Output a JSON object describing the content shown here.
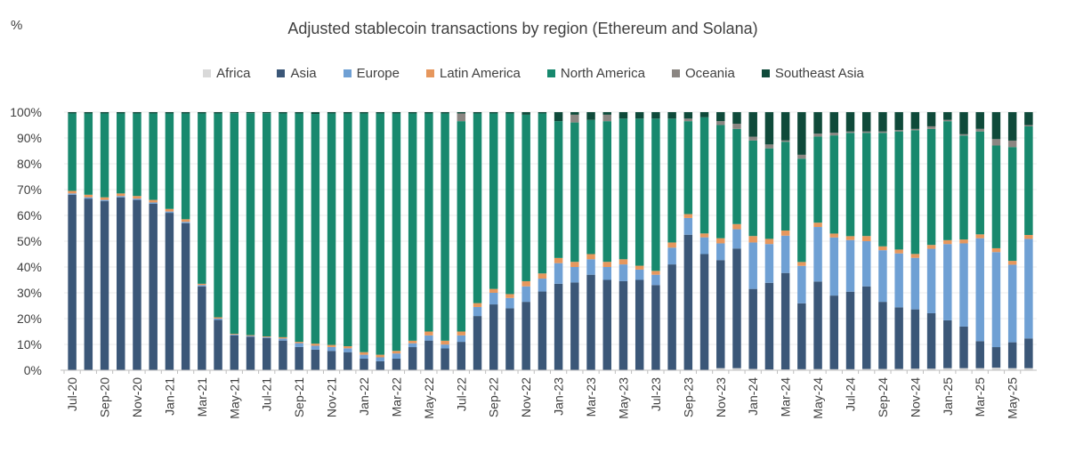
{
  "chart_data": {
    "type": "bar",
    "stacked": true,
    "title": "Adjusted stablecoin transactions by region (Ethereum and Solana)",
    "unit_label": "%",
    "ylim": [
      0,
      100
    ],
    "yticks": [
      "0%",
      "10%",
      "20%",
      "30%",
      "40%",
      "50%",
      "60%",
      "70%",
      "80%",
      "90%",
      "100%"
    ],
    "legend_position": "top",
    "categories": [
      "Jul-20",
      "Aug-20",
      "Sep-20",
      "Oct-20",
      "Nov-20",
      "Dec-20",
      "Jan-21",
      "Feb-21",
      "Mar-21",
      "Apr-21",
      "May-21",
      "Jun-21",
      "Jul-21",
      "Aug-21",
      "Sep-21",
      "Oct-21",
      "Nov-21",
      "Dec-21",
      "Jan-22",
      "Feb-22",
      "Mar-22",
      "Apr-22",
      "May-22",
      "Jun-22",
      "Jul-22",
      "Aug-22",
      "Sep-22",
      "Oct-22",
      "Nov-22",
      "Dec-22",
      "Jan-23",
      "Feb-23",
      "Mar-23",
      "Apr-23",
      "May-23",
      "Jun-23",
      "Jul-23",
      "Aug-23",
      "Sep-23",
      "Oct-23",
      "Nov-23",
      "Dec-23",
      "Jan-24",
      "Feb-24",
      "Mar-24",
      "Apr-24",
      "May-24",
      "Jun-24",
      "Jul-24",
      "Aug-24",
      "Sep-24",
      "Oct-24",
      "Nov-24",
      "Dec-24",
      "Jan-25",
      "Feb-25",
      "Mar-25",
      "Apr-25",
      "May-25",
      "Jun-25"
    ],
    "x_tick_labels": [
      "Jul-20",
      "Sep-20",
      "Nov-20",
      "Jan-21",
      "Mar-21",
      "May-21",
      "Jul-21",
      "Sep-21",
      "Nov-21",
      "Jan-22",
      "Mar-22",
      "May-22",
      "Jul-22",
      "Sep-22",
      "Nov-22",
      "Jan-23",
      "Mar-23",
      "May-23",
      "Jul-23",
      "Sep-23",
      "Nov-23",
      "Jan-24",
      "Mar-24",
      "May-24",
      "Jul-24",
      "Sep-24",
      "Nov-24",
      "Jan-25",
      "Mar-25",
      "May-25"
    ],
    "series": [
      {
        "name": "Africa",
        "color": "#d9d9d9",
        "values": [
          0,
          0,
          0,
          0,
          0,
          0,
          0,
          0,
          0,
          0,
          0,
          0,
          0,
          0,
          0,
          0,
          0,
          0,
          0,
          0,
          0,
          0,
          0,
          0,
          0,
          0,
          0,
          0,
          0,
          0,
          0,
          0,
          0,
          0,
          0,
          0,
          0,
          0,
          0,
          0,
          0.8,
          0.8,
          0.5,
          0.3,
          0.3,
          0.4,
          0.4,
          0.4,
          0.4,
          0.5,
          0.5,
          0.5,
          0.6,
          0.6,
          0.8,
          0.8,
          0.8,
          1.0,
          0.8,
          0.8
        ]
      },
      {
        "name": "Asia",
        "color": "#3b5778",
        "values": [
          68,
          66.5,
          65.5,
          67,
          66,
          64.5,
          61,
          57,
          32.5,
          19.5,
          13.5,
          13,
          12.5,
          11.5,
          9,
          8,
          7.5,
          7,
          4.5,
          3.5,
          4.5,
          9,
          11.5,
          8.5,
          11,
          21,
          25.5,
          24,
          26.5,
          30.5,
          33.5,
          34,
          37,
          35,
          34.5,
          35,
          33,
          41,
          52.5,
          45,
          42,
          46.5,
          31,
          33.5,
          37.5,
          25.5,
          30.5,
          28.5,
          30,
          32,
          26,
          24,
          23,
          21.5,
          18.5,
          16,
          10.5,
          8,
          10,
          11.5
        ]
      },
      {
        "name": "Europe",
        "color": "#6fa0d4",
        "values": [
          0.5,
          0.5,
          0.5,
          0.5,
          0.5,
          0.5,
          0.5,
          0.5,
          0.5,
          0.5,
          0.3,
          0.3,
          0.3,
          0.8,
          1.5,
          1.5,
          1.5,
          1.5,
          1.5,
          1.5,
          2,
          1.5,
          2,
          1.5,
          2.5,
          3.5,
          4.5,
          4,
          6,
          5,
          8,
          6,
          6,
          5,
          6.5,
          4,
          4,
          6.5,
          6.5,
          6.5,
          6.5,
          7.5,
          18,
          15,
          14.5,
          14.5,
          19,
          22.5,
          20,
          17.5,
          20,
          21,
          20,
          25,
          29.5,
          32,
          40,
          37,
          30,
          38.5
        ]
      },
      {
        "name": "Latin America",
        "color": "#e6975d",
        "values": [
          1,
          1,
          1,
          1,
          1,
          1,
          1,
          1,
          0.5,
          0.5,
          0.3,
          0.3,
          0.3,
          0.5,
          0.5,
          0.8,
          0.8,
          0.8,
          1,
          1,
          1,
          1,
          1.5,
          1.5,
          1.5,
          1.5,
          1.5,
          1.5,
          2,
          2,
          2,
          2,
          2,
          2,
          2,
          1.5,
          1.5,
          2,
          1.5,
          1.5,
          2,
          2,
          2.5,
          2,
          2,
          1.5,
          1.5,
          1.5,
          1.5,
          2,
          1.5,
          1.5,
          1.5,
          1.5,
          1.5,
          1.5,
          1.5,
          1.5,
          1.5,
          1.5
        ]
      },
      {
        "name": "North America",
        "color": "#18896e",
        "values": [
          30,
          31.5,
          32.5,
          31,
          32,
          33.5,
          37,
          41,
          66,
          79,
          85.5,
          86,
          86.5,
          86.7,
          88.5,
          89,
          89.7,
          90.2,
          92.5,
          93.5,
          92,
          88.5,
          84.5,
          88.5,
          81.5,
          73.5,
          68,
          70,
          64.5,
          62,
          53,
          54,
          52,
          54.5,
          54.5,
          57,
          59,
          48,
          36,
          45,
          44,
          37,
          37,
          35,
          34.5,
          40,
          30,
          38,
          40,
          40,
          44,
          46,
          48,
          45,
          46,
          40,
          40,
          40,
          44,
          42
        ]
      },
      {
        "name": "Oceania",
        "color": "#8b8682",
        "values": [
          0,
          0,
          0,
          0,
          0,
          0,
          0,
          0,
          0,
          0,
          0,
          0,
          0,
          0,
          0,
          0,
          0,
          0,
          0,
          0,
          0,
          0,
          0,
          0,
          3,
          0,
          0,
          0,
          0,
          0,
          0,
          3,
          0,
          2.5,
          0,
          0,
          0,
          0,
          1,
          0,
          1.5,
          2,
          1.5,
          1.5,
          0.5,
          1.5,
          1.0,
          1.0,
          0.5,
          0.5,
          0.5,
          0.5,
          0.5,
          1,
          0.5,
          0.5,
          1,
          2.5,
          2.5,
          0.5
        ]
      },
      {
        "name": "Southeast Asia",
        "color": "#0f4a3a",
        "values": [
          0.5,
          0.5,
          0.5,
          0.5,
          0.5,
          0.5,
          0.5,
          0.5,
          0.5,
          0.5,
          0.4,
          0.4,
          0.4,
          0.5,
          0.5,
          0.7,
          0.5,
          0.5,
          0.5,
          0.5,
          0.5,
          0.5,
          0.5,
          0.5,
          0.5,
          0.5,
          0.5,
          0.5,
          1,
          0.5,
          3.5,
          1,
          3,
          1,
          2.5,
          2.5,
          2.5,
          2.5,
          2.5,
          2,
          3.5,
          4.5,
          9.5,
          12.5,
          11,
          16.5,
          7.5,
          8,
          7.5,
          7.5,
          7.5,
          7,
          6.5,
          5.5,
          3,
          8.5,
          6.5,
          10.5,
          11,
          5
        ]
      }
    ]
  }
}
